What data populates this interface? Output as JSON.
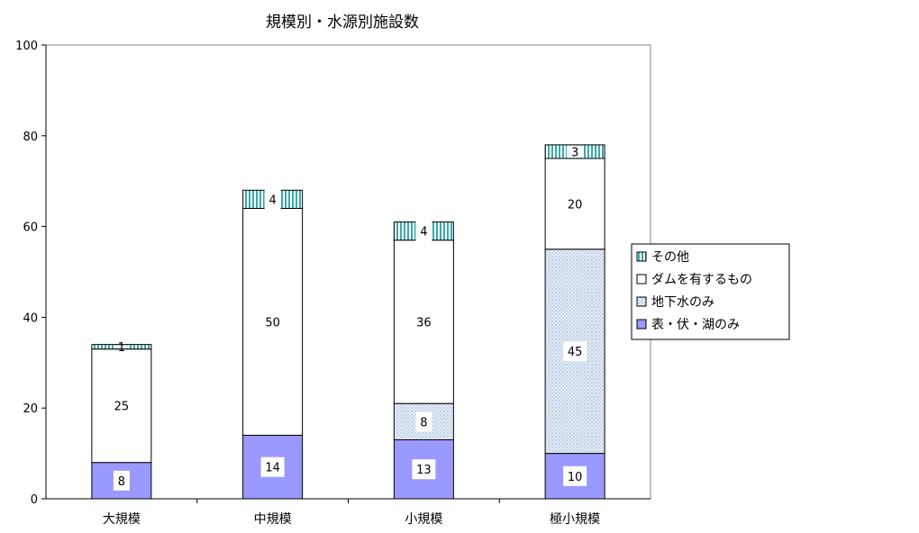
{
  "chart_data": {
    "type": "bar",
    "stacked": true,
    "title": "規模別・水源別施設数",
    "xlabel": "",
    "ylabel": "",
    "ylim": [
      0,
      100
    ],
    "yticks": [
      0,
      20,
      40,
      60,
      80,
      100
    ],
    "categories": [
      "大規模",
      "中規模",
      "小規模",
      "極小規模"
    ],
    "series": [
      {
        "name": "表・伏・湖のみ",
        "values": [
          8,
          14,
          13,
          10
        ],
        "color": "#9999ff",
        "pattern": "solid"
      },
      {
        "name": "地下水のみ",
        "values": [
          0,
          0,
          8,
          45
        ],
        "color": "#dde8f4",
        "pattern": "dots"
      },
      {
        "name": "ダムを有するもの",
        "values": [
          25,
          50,
          36,
          20
        ],
        "color": "#ffffff",
        "pattern": "solid"
      },
      {
        "name": "その他",
        "values": [
          1,
          4,
          4,
          3
        ],
        "color": "#99dddd",
        "pattern": "vertical-stripes"
      }
    ],
    "legend": {
      "position": "right",
      "order": [
        "その他",
        "ダムを有するもの",
        "地下水のみ",
        "表・伏・湖のみ"
      ]
    },
    "grid": false
  }
}
